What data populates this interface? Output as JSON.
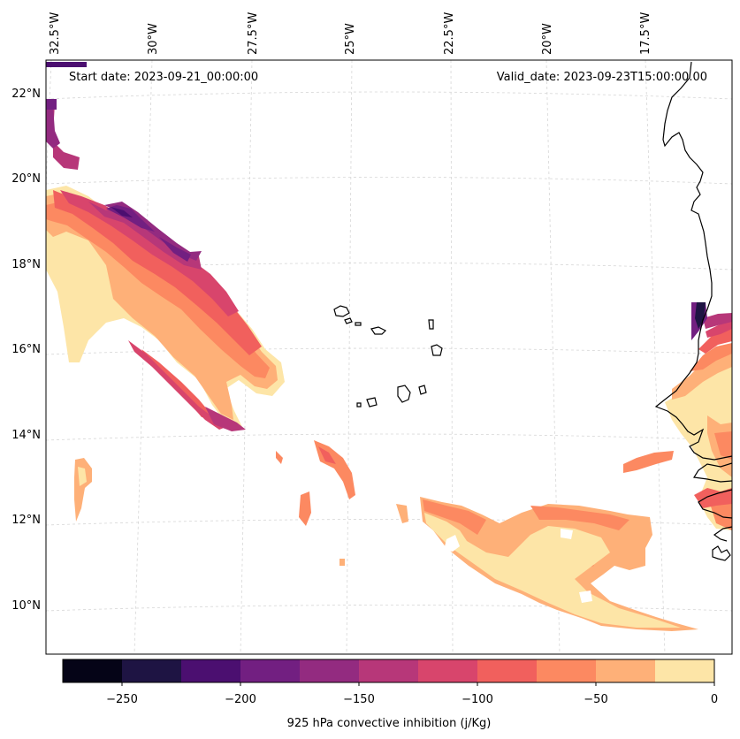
{
  "map": {
    "start_date": "Start date: 2023-09-21_00:00:00",
    "valid_date": "Valid_date: 2023-09-23T15:00:00.00",
    "lon_labels": [
      "32.5°W",
      "30°W",
      "27.5°W",
      "25°W",
      "22.5°W",
      "20°W",
      "17.5°W"
    ],
    "lat_labels": [
      "22°N",
      "20°N",
      "18°N",
      "16°N",
      "14°N",
      "12°N",
      "10°N"
    ],
    "gridlines": true,
    "variable": "925 hPa convective inhibition (j/Kg)",
    "colorbar": {
      "ticks": [
        "−250",
        "−200",
        "−150",
        "−100",
        "−50",
        "0"
      ],
      "levels": [
        -275,
        -250,
        -225,
        -200,
        -175,
        -150,
        -125,
        -100,
        -75,
        -50,
        -25,
        0
      ],
      "colors": [
        "#050417",
        "#1e1443",
        "#4b0f70",
        "#721f81",
        "#932b80",
        "#b73779",
        "#d8456c",
        "#f1605d",
        "#fc8961",
        "#feb078",
        "#fde5a7"
      ]
    }
  }
}
